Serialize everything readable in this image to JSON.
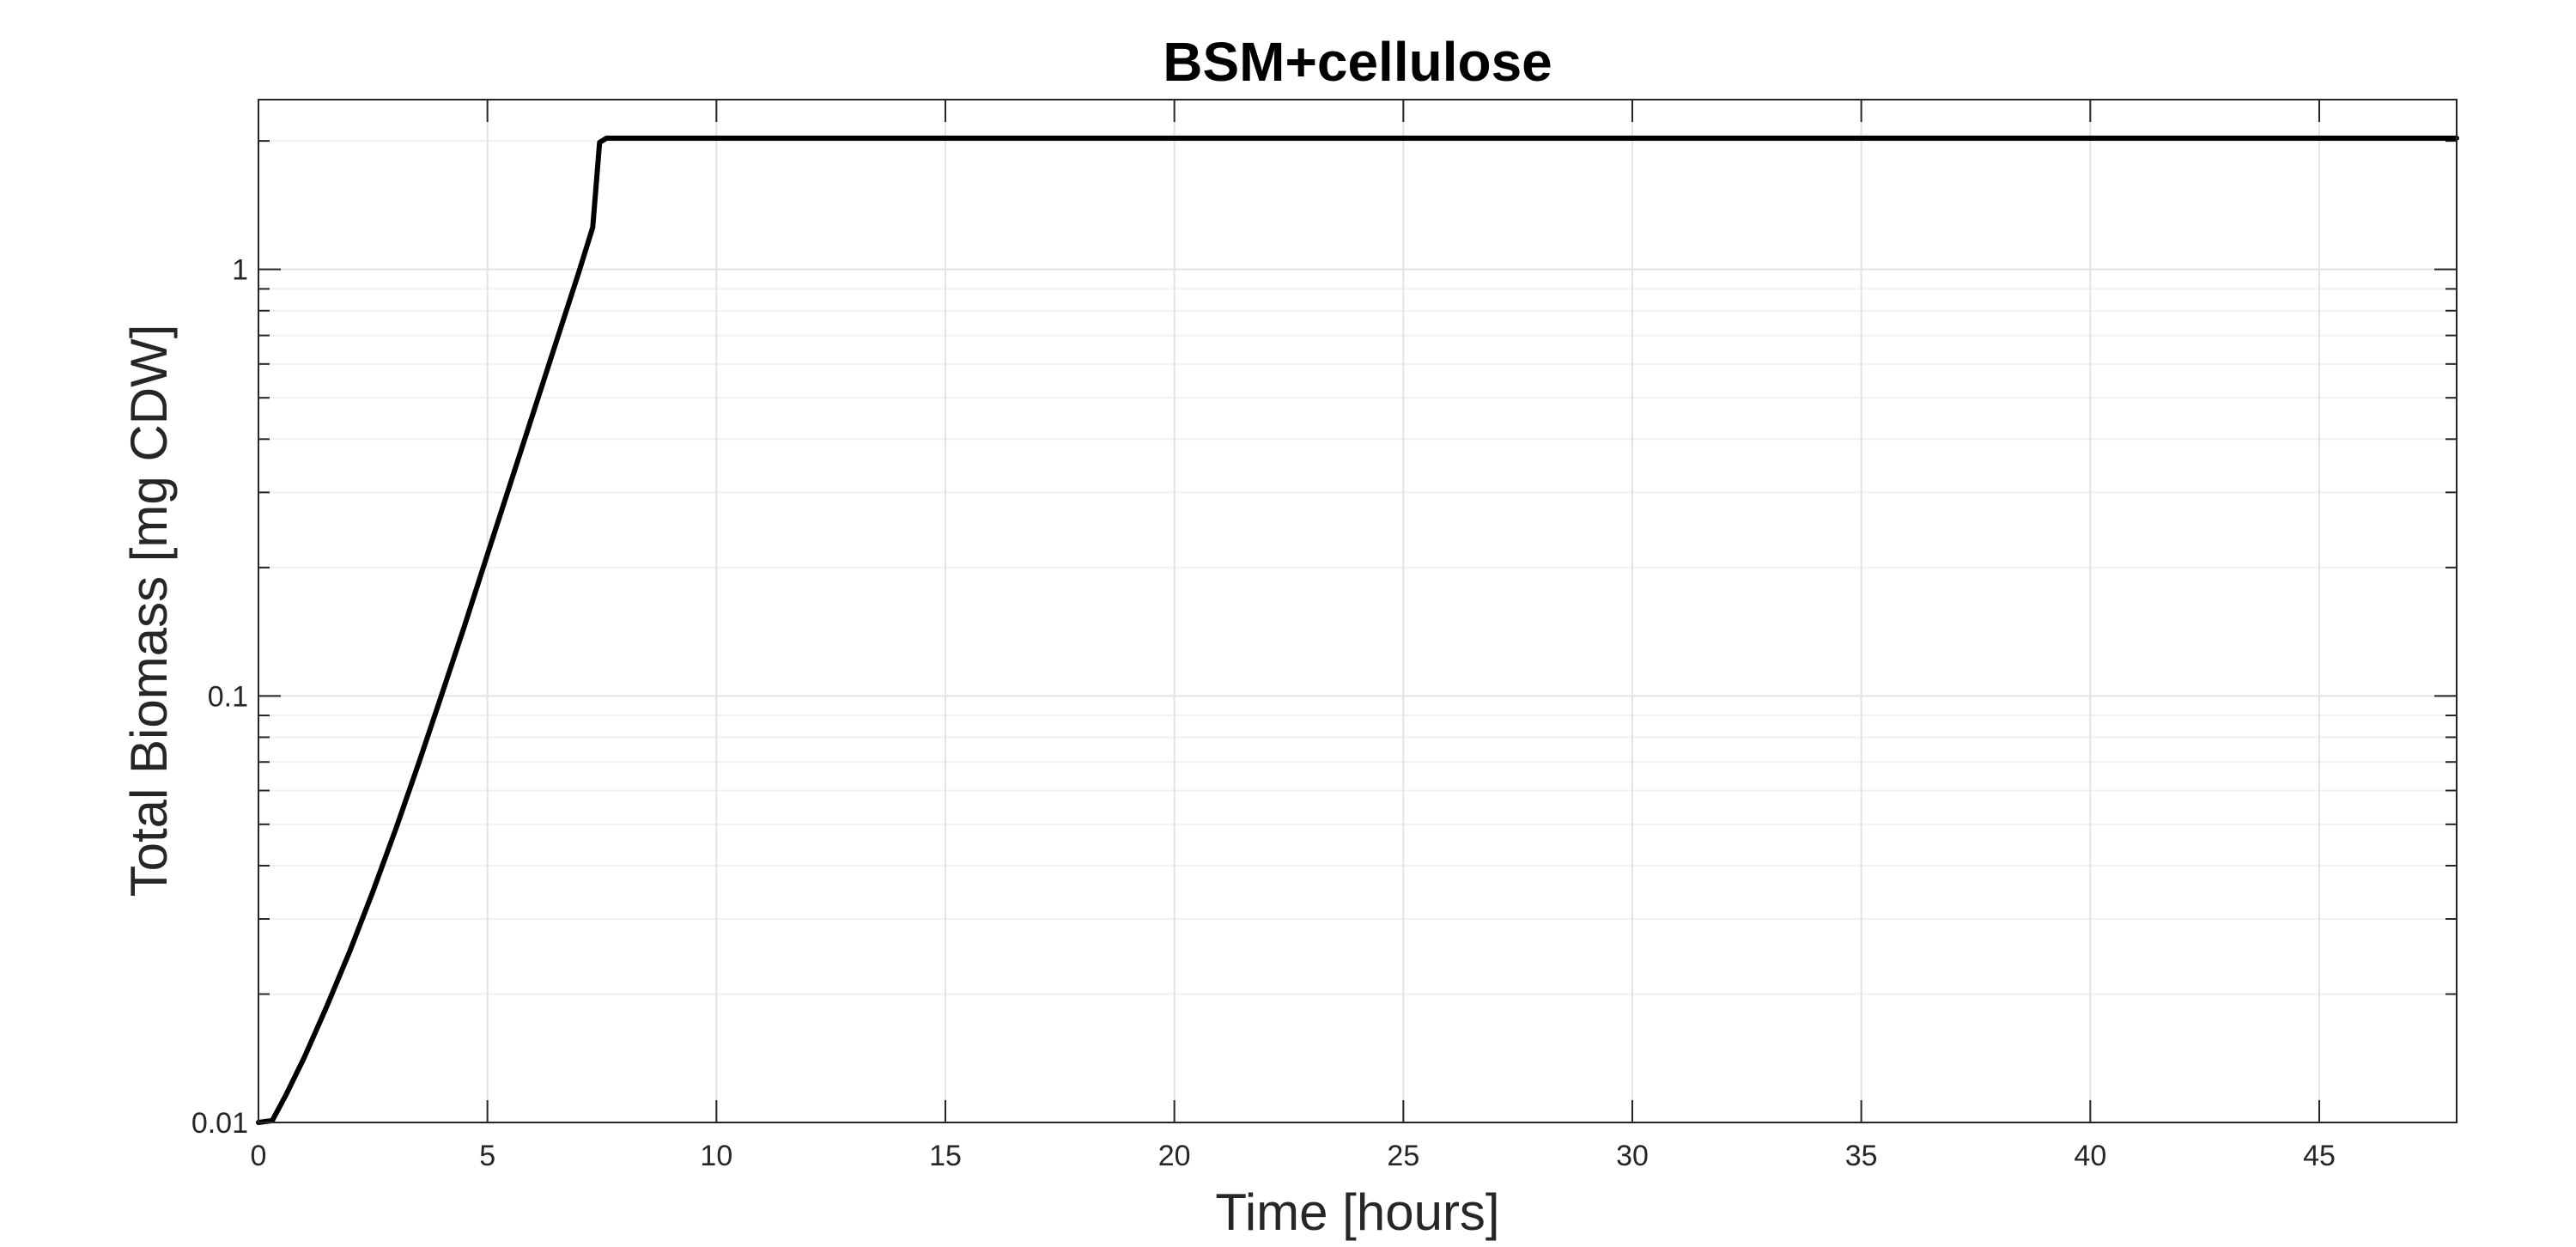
{
  "chart_data": {
    "type": "line",
    "title": "BSM+cellulose",
    "xlabel": "Time [hours]",
    "ylabel": "Total Biomass [mg CDW]",
    "xlim": [
      0,
      48
    ],
    "ylim": [
      0.01,
      2.5
    ],
    "yscale": "log",
    "grid": true,
    "minor_grid": true,
    "xticks": [
      0,
      5,
      10,
      15,
      20,
      25,
      30,
      35,
      40,
      45
    ],
    "xtick_labels": [
      "0",
      "5",
      "10",
      "15",
      "20",
      "25",
      "30",
      "35",
      "40",
      "45"
    ],
    "yticks": [
      0.01,
      0.1,
      1
    ],
    "ytick_labels": [
      "0.01",
      "0.1",
      "1"
    ],
    "series": [
      {
        "color": "#000000",
        "x": [
          0,
          0.3,
          0.6,
          1.0,
          1.5,
          2.0,
          2.5,
          3.0,
          3.5,
          4.0,
          4.5,
          5.0,
          5.5,
          6.0,
          6.5,
          7.0,
          7.3,
          7.45,
          7.6,
          10,
          20,
          30,
          40,
          48
        ],
        "y": [
          0.01,
          0.0101,
          0.0116,
          0.0142,
          0.0188,
          0.0253,
          0.0348,
          0.0488,
          0.0696,
          0.1005,
          0.146,
          0.2147,
          0.3144,
          0.4607,
          0.6753,
          0.988,
          1.255,
          1.985,
          2.03,
          2.03,
          2.03,
          2.03,
          2.03,
          2.03
        ]
      }
    ]
  }
}
